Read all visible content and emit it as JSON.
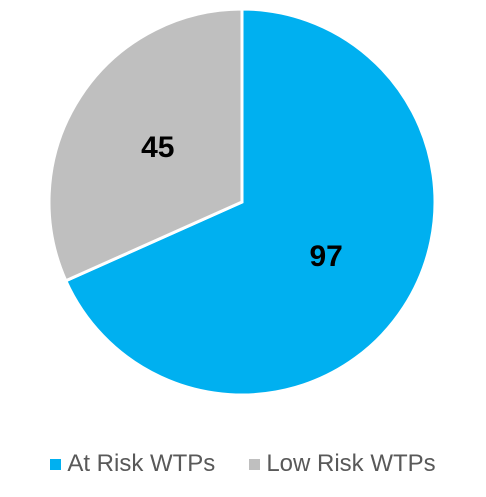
{
  "chart_data": {
    "type": "pie",
    "title": "",
    "categories": [
      "At Risk WTPs",
      "Low Risk WTPs"
    ],
    "values": [
      97,
      45
    ],
    "data_labels": [
      "97",
      "45"
    ],
    "colors": [
      "#00b0f0",
      "#bfbfbf"
    ],
    "start_angle_deg": 0,
    "direction": "clockwise",
    "legend_placement": "bottom"
  }
}
